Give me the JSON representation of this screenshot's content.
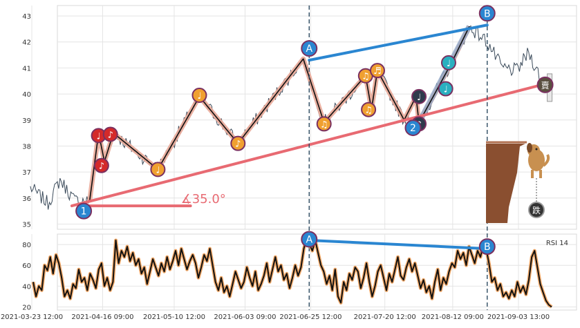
{
  "chart_data": [
    {
      "type": "line",
      "panel": "price",
      "x_ticks": [
        "2021-03-23 12:00",
        "2021-04-16 09:00",
        "2021-05-10 12:00",
        "2021-06-03 09:00",
        "2021-06-25 12:00",
        "2021-07-20 12:00",
        "2021-08-12 09:00",
        "2021-09-03 13:00"
      ],
      "y_ticks": [
        35,
        36,
        37,
        38,
        39,
        40,
        41,
        42,
        43
      ],
      "ylim": [
        34.8,
        43.4
      ],
      "grid": true,
      "zigzag": [
        {
          "date": "2021-04-12",
          "price": 35.9
        },
        {
          "date": "2021-04-15",
          "price": 38.5
        },
        {
          "date": "2021-04-17",
          "price": 37.4
        },
        {
          "date": "2021-04-20",
          "price": 38.5
        },
        {
          "date": "2021-05-05",
          "price": 37.1
        },
        {
          "date": "2021-05-19",
          "price": 39.9
        },
        {
          "date": "2021-06-01",
          "price": 38.1
        },
        {
          "date": "2021-06-23",
          "price": 41.35
        },
        {
          "date": "2021-06-30",
          "price": 38.9
        },
        {
          "date": "2021-07-14",
          "price": 40.7
        },
        {
          "date": "2021-07-16",
          "price": 39.4
        },
        {
          "date": "2021-07-18",
          "price": 40.9
        },
        {
          "date": "2021-07-27",
          "price": 39.0
        },
        {
          "date": "2021-07-31",
          "price": 39.9
        },
        {
          "date": "2021-08-01",
          "price": 38.9
        },
        {
          "date": "2021-08-12",
          "price": 41.2
        },
        {
          "date": "2021-08-18",
          "price": 42.6
        }
      ],
      "markers": [
        {
          "label": "1",
          "date": "2021-04-10",
          "price": 35.5,
          "color": "#2a86d1"
        },
        {
          "label": "A",
          "date": "2021-06-25",
          "price": 41.75,
          "color": "#2a86d1"
        },
        {
          "label": "2",
          "date": "2021-07-30",
          "price": 38.7,
          "color": "#2a86d1"
        },
        {
          "label": "B",
          "date": "2021-08-24",
          "price": 43.1,
          "color": "#2a86d1"
        }
      ],
      "music_notes": [
        {
          "date": "2021-04-15",
          "price": 38.4,
          "glyph": "♩",
          "color": "#d42a2a"
        },
        {
          "date": "2021-04-16",
          "price": 37.25,
          "glyph": "♪",
          "color": "#d42a2a"
        },
        {
          "date": "2021-04-19",
          "price": 38.45,
          "glyph": "♪",
          "color": "#d42a2a"
        },
        {
          "date": "2021-05-05",
          "price": 37.1,
          "glyph": "♩",
          "color": "#f0a030"
        },
        {
          "date": "2021-05-19",
          "price": 39.95,
          "glyph": "♩",
          "color": "#f0a030"
        },
        {
          "date": "2021-06-01",
          "price": 38.1,
          "glyph": "♪",
          "color": "#f0a030"
        },
        {
          "date": "2021-06-30",
          "price": 38.85,
          "glyph": "♫",
          "color": "#f0a030"
        },
        {
          "date": "2021-07-14",
          "price": 40.7,
          "glyph": "♫",
          "color": "#f0a030"
        },
        {
          "date": "2021-07-15",
          "price": 39.4,
          "glyph": "♫",
          "color": "#f0a030"
        },
        {
          "date": "2021-07-18",
          "price": 40.9,
          "glyph": "♬",
          "color": "#f0a030"
        },
        {
          "date": "2021-08-01",
          "price": 39.9,
          "glyph": "♩",
          "color": "#2e3a4c"
        },
        {
          "date": "2021-08-01",
          "price": 38.85,
          "glyph": "♪",
          "color": "#2e3a4c"
        },
        {
          "date": "2021-08-11",
          "price": 41.2,
          "glyph": "♩",
          "color": "#2ab0c0"
        },
        {
          "date": "2021-08-10",
          "price": 40.2,
          "glyph": "♩",
          "color": "#2ab0c0"
        }
      ],
      "channel_A_B": [
        {
          "date": "2021-06-25",
          "price": 41.3
        },
        {
          "date": "2021-08-24",
          "price": 42.65
        }
      ],
      "trendline": [
        {
          "date": "2021-04-06",
          "price": 35.7
        },
        {
          "date": "2021-09-13",
          "price": 40.4
        }
      ],
      "base_line": [
        {
          "date": "2021-04-10",
          "price": 35.7
        },
        {
          "date": "2021-05-16",
          "price": 35.7
        }
      ],
      "angle_label": "∡35.0°",
      "vlines": [
        "2021-06-25",
        "2021-08-24"
      ],
      "sell_marker": {
        "date": "2021-09-13",
        "price": 40.35,
        "label": "賣"
      },
      "ball_label": "跌",
      "colors": {
        "price_line": "#3a4a5a",
        "zigzag_glow": "#e8a898",
        "channel": "#2a86d1",
        "trend": "#e86a72",
        "vline": "#2d4a60"
      }
    },
    {
      "type": "line",
      "panel": "rsi",
      "legend": "RSI 14",
      "y_ticks": [
        20,
        40,
        60,
        80
      ],
      "ylim": [
        17,
        90
      ],
      "series": [
        {
          "values": [
            44,
            30,
            40,
            36,
            60,
            55,
            68,
            52,
            70,
            62,
            48,
            30,
            36,
            28,
            42,
            38,
            56,
            44,
            48,
            36,
            52,
            46,
            38,
            56,
            62,
            40,
            48,
            36,
            44,
            84,
            62,
            74,
            68,
            78,
            64,
            72,
            60,
            66,
            52,
            58,
            42,
            54,
            66,
            58,
            50,
            62,
            54,
            68,
            56,
            64,
            74,
            60,
            76,
            66,
            56,
            64,
            70,
            62,
            48,
            58,
            70,
            64,
            76,
            60,
            44,
            36,
            48,
            34,
            40,
            30,
            42,
            54,
            46,
            38,
            44,
            58,
            48,
            40,
            54,
            36,
            42,
            50,
            62,
            44,
            56,
            68,
            54,
            60,
            46,
            52,
            38,
            48,
            60,
            50,
            58,
            76,
            86,
            80,
            74,
            84,
            72,
            60,
            54,
            42,
            50,
            36,
            56,
            30,
            24,
            44,
            36,
            52,
            46,
            58,
            54,
            38,
            48,
            62,
            44,
            30,
            40,
            54,
            60,
            48,
            36,
            52,
            44,
            56,
            68,
            50,
            46,
            58,
            66,
            54,
            62,
            50,
            38,
            46,
            34,
            40,
            28,
            44,
            56,
            36,
            48,
            42,
            54,
            62,
            58,
            74,
            66,
            72,
            60,
            78,
            70,
            62,
            74,
            68,
            80,
            76,
            62,
            44,
            48,
            36,
            42,
            30,
            34,
            28,
            36,
            30,
            44,
            34,
            40,
            32,
            46,
            68,
            74,
            58,
            42,
            34,
            26,
            22,
            20
          ]
        }
      ],
      "channel_A_B": [
        {
          "date": "2021-06-25",
          "rsi": 84
        },
        {
          "date": "2021-08-24",
          "rsi": 76
        }
      ],
      "markers": [
        {
          "label": "A",
          "date": "2021-06-25",
          "rsi": 85
        },
        {
          "label": "B",
          "date": "2021-08-24",
          "rsi": 78
        }
      ]
    }
  ]
}
